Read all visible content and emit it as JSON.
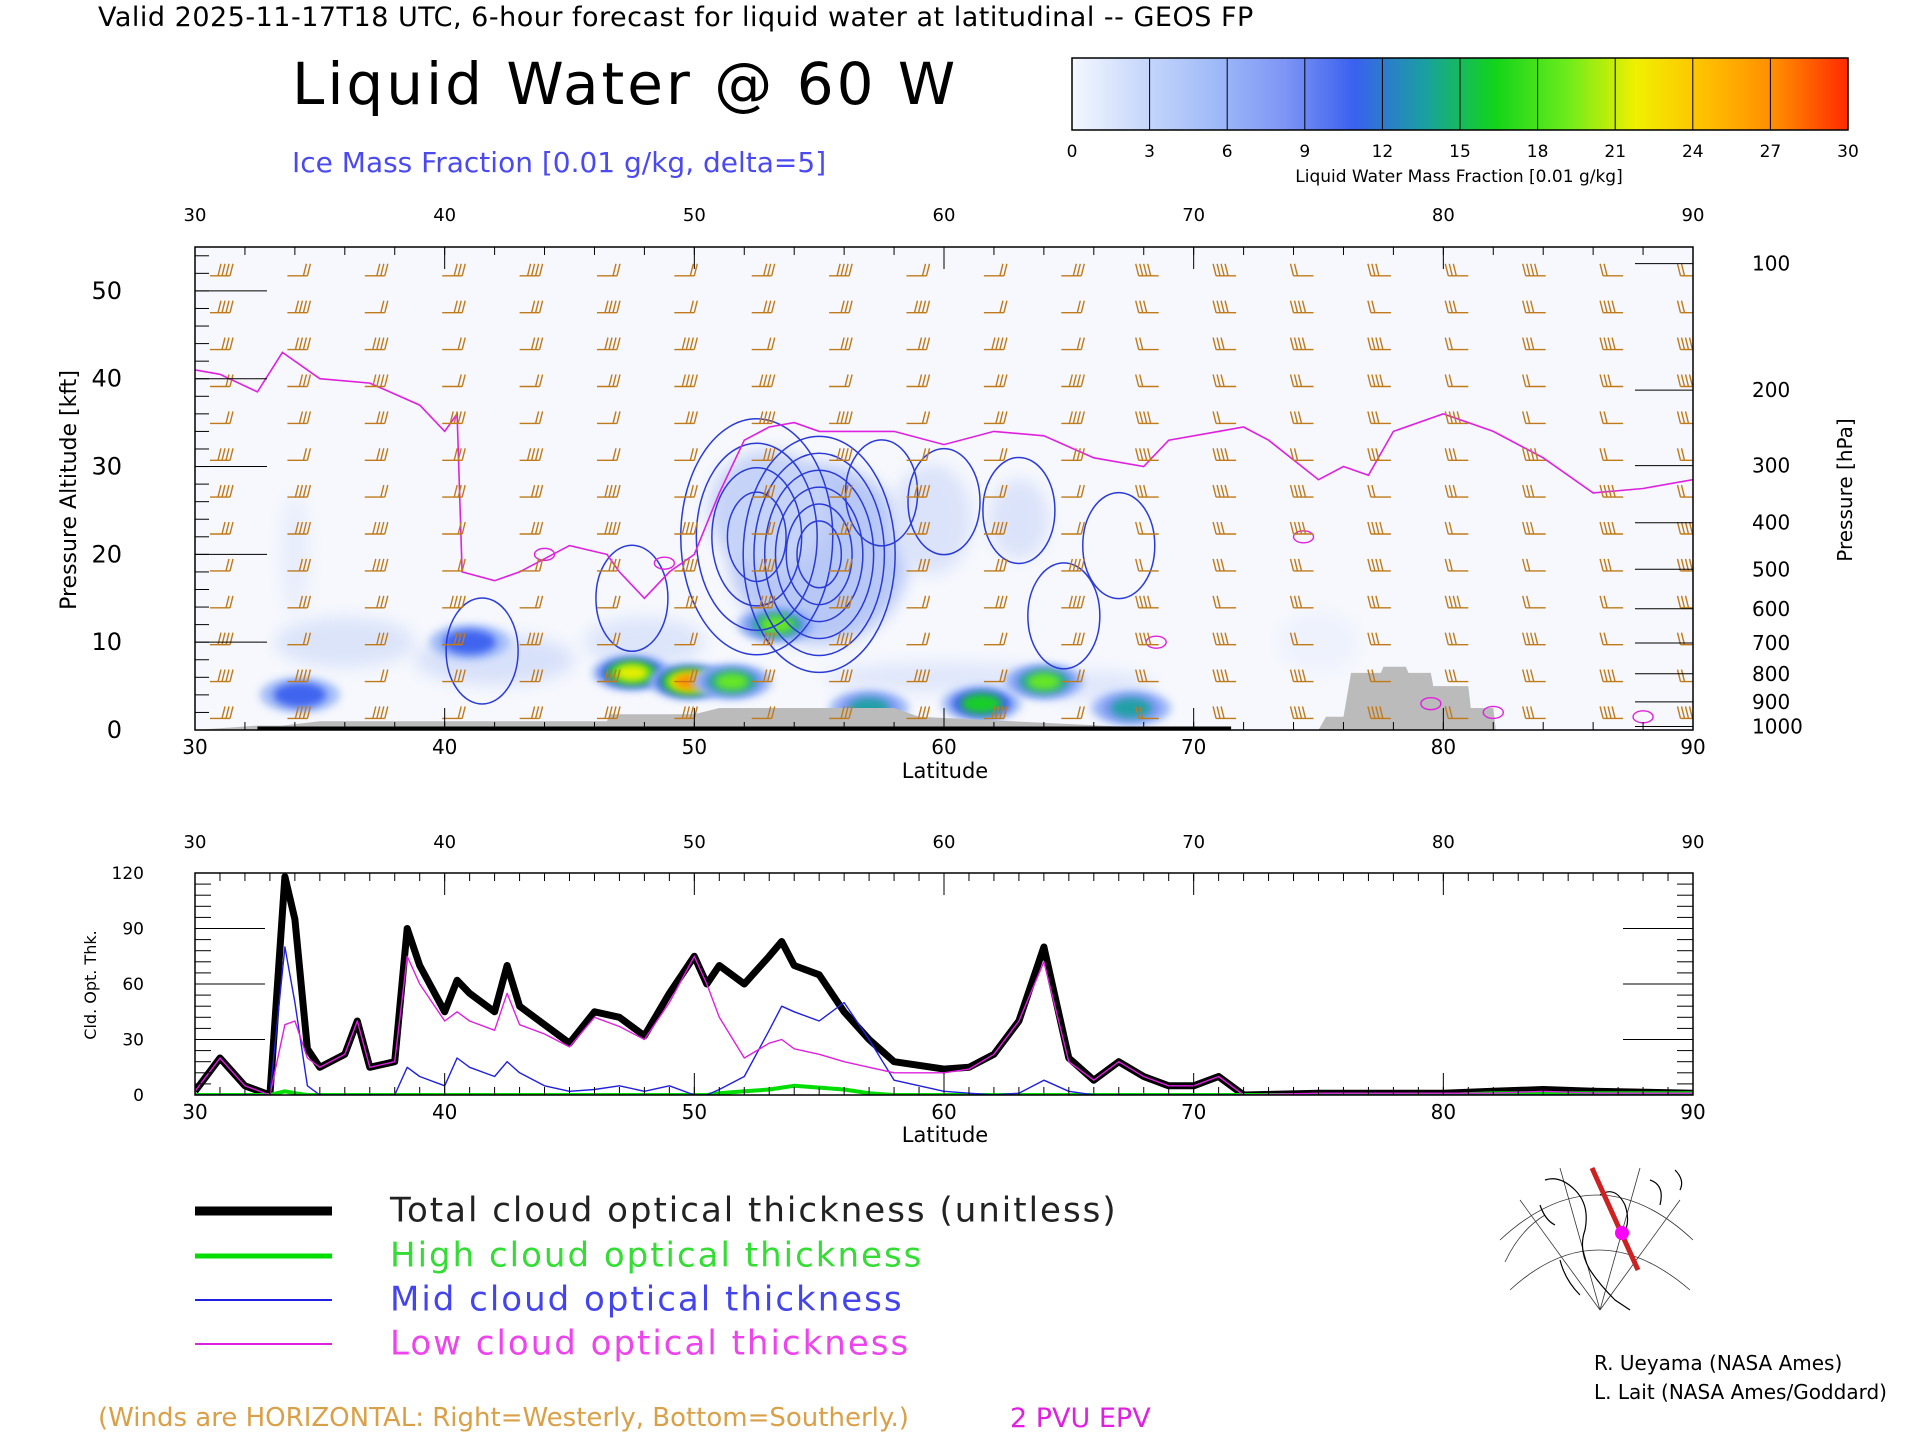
{
  "header": {
    "valid_line": "Valid 2025-11-17T18 UTC, 6-hour forecast for liquid water at latitudinal -- GEOS FP",
    "title": "Liquid Water @ 60 W",
    "subtitle": "Ice Mass Fraction [0.01 g/kg, delta=5]"
  },
  "colorbar": {
    "label": "Liquid Water Mass Fraction [0.01 g/kg]",
    "ticks": [
      "0",
      "3",
      "6",
      "9",
      "12",
      "15",
      "18",
      "21",
      "24",
      "27",
      "30"
    ],
    "colors": [
      "#f4f7fe",
      "#c8d8fb",
      "#a0bbf8",
      "#7f96f5",
      "#3a60ef",
      "#1aa0a0",
      "#12d41a",
      "#6aeb1c",
      "#f0f000",
      "#ffbe00",
      "#ff8a00",
      "#ff2a00"
    ]
  },
  "colors": {
    "wind_barbs": "#c07a1a",
    "ice_contours": "#2a3ad8",
    "epv_line": "#e020e0",
    "terrain": "#bbbbbb",
    "total_line": "#000000",
    "high_line": "#00dd00",
    "mid_line": "#2020e0",
    "low_line": "#e020e0"
  },
  "chart_data": [
    {
      "type": "heatmap",
      "name_shown": "Liquid Water @ 60 W",
      "xlabel": "Latitude",
      "ylabel": "Pressure Altitude [kft]",
      "ylabel_right": "Pressure [hPa]",
      "xlim": [
        30,
        90
      ],
      "ylim": [
        0,
        55
      ],
      "x_ticks": [
        "30",
        "40",
        "50",
        "60",
        "70",
        "80",
        "90"
      ],
      "y_ticks": [
        "0",
        "10",
        "20",
        "30",
        "40",
        "50"
      ],
      "pressure_ticks": [
        "100",
        "200",
        "300",
        "400",
        "500",
        "600",
        "700",
        "800",
        "900",
        "1000"
      ],
      "pressure_tick_kft": [
        53.1,
        38.7,
        30.1,
        23.6,
        18.3,
        13.8,
        9.9,
        6.4,
        3.2,
        0.4
      ],
      "liquid_water_blobs": [
        {
          "lat": 34.2,
          "kft": 4,
          "value": 12
        },
        {
          "lat": 41.0,
          "kft": 10,
          "value": 11
        },
        {
          "lat": 47.5,
          "kft": 6.5,
          "value": 22
        },
        {
          "lat": 49.8,
          "kft": 5.5,
          "value": 26
        },
        {
          "lat": 51.5,
          "kft": 5.5,
          "value": 19
        },
        {
          "lat": 53.3,
          "kft": 12,
          "value": 19
        },
        {
          "lat": 57.0,
          "kft": 2.5,
          "value": 14
        },
        {
          "lat": 61.5,
          "kft": 3.0,
          "value": 15
        },
        {
          "lat": 64.0,
          "kft": 5.5,
          "value": 18
        },
        {
          "lat": 67.5,
          "kft": 2.5,
          "value": 13
        }
      ],
      "ice_mass_fraction_contours": [
        {
          "lat": 55.0,
          "kft": 20,
          "levels": 6
        },
        {
          "lat": 52.5,
          "kft": 22,
          "levels": 4
        },
        {
          "lat": 57.5,
          "kft": 27,
          "levels": 1
        },
        {
          "lat": 60.0,
          "kft": 26,
          "levels": 1
        },
        {
          "lat": 63.0,
          "kft": 25,
          "levels": 1
        },
        {
          "lat": 67.0,
          "kft": 21,
          "levels": 1
        },
        {
          "lat": 41.5,
          "kft": 9,
          "levels": 1
        },
        {
          "lat": 47.5,
          "kft": 15,
          "levels": 1
        },
        {
          "lat": 64.8,
          "kft": 13,
          "levels": 1
        }
      ],
      "epv_2pvu_kft": [
        [
          30,
          41
        ],
        [
          31,
          40.5
        ],
        [
          32.5,
          38.5
        ],
        [
          33.5,
          43
        ],
        [
          35,
          40
        ],
        [
          37,
          39.5
        ],
        [
          39,
          37
        ],
        [
          40,
          34
        ],
        [
          40.5,
          36
        ],
        [
          40.7,
          18
        ],
        [
          42,
          17
        ],
        [
          43,
          18
        ],
        [
          45,
          21
        ],
        [
          46.5,
          20
        ],
        [
          47,
          18
        ],
        [
          48,
          15
        ],
        [
          49,
          18
        ],
        [
          50,
          20
        ],
        [
          51,
          27
        ],
        [
          52,
          33
        ],
        [
          53,
          34.5
        ],
        [
          54,
          35
        ],
        [
          55,
          34
        ],
        [
          56,
          34
        ],
        [
          58,
          34
        ],
        [
          60,
          32.5
        ],
        [
          62,
          34
        ],
        [
          64,
          33.5
        ],
        [
          66,
          31
        ],
        [
          68,
          30
        ],
        [
          69,
          33
        ],
        [
          71,
          34
        ],
        [
          72,
          34.5
        ],
        [
          73,
          33
        ],
        [
          75,
          28.5
        ],
        [
          76,
          30
        ],
        [
          77,
          29
        ],
        [
          78,
          34
        ],
        [
          80,
          36
        ],
        [
          82,
          34
        ],
        [
          84,
          31
        ],
        [
          86,
          27
        ],
        [
          88,
          27.5
        ],
        [
          90,
          28.5
        ]
      ],
      "terrain_kft": [
        [
          30,
          0
        ],
        [
          32.5,
          0.5
        ],
        [
          33.5,
          0.5
        ],
        [
          35,
          1
        ],
        [
          46.5,
          1
        ],
        [
          46.6,
          1.8
        ],
        [
          50,
          1.8
        ],
        [
          51,
          2.5
        ],
        [
          53,
          2.5
        ],
        [
          58,
          2.5
        ],
        [
          59,
          1.5
        ],
        [
          70,
          0
        ],
        [
          72,
          0
        ],
        [
          75,
          0
        ],
        [
          75.3,
          1.5
        ],
        [
          76,
          1.5
        ],
        [
          76.3,
          6.5
        ],
        [
          77.5,
          6.5
        ],
        [
          77.6,
          7.2
        ],
        [
          78.5,
          7.2
        ],
        [
          78.6,
          6.5
        ],
        [
          79.5,
          6.5
        ],
        [
          79.6,
          5
        ],
        [
          81,
          5
        ],
        [
          81.1,
          2.5
        ],
        [
          82,
          2.5
        ],
        [
          82.1,
          0
        ],
        [
          90,
          0
        ]
      ]
    },
    {
      "type": "line",
      "xlabel": "Latitude",
      "ylabel": "Cld. Opt. Thk.",
      "xlim": [
        30,
        90
      ],
      "ylim": [
        0,
        120
      ],
      "x_ticks": [
        "30",
        "40",
        "50",
        "60",
        "70",
        "80",
        "90"
      ],
      "y_ticks": [
        "0",
        "30",
        "60",
        "90",
        "120"
      ],
      "x": [
        30,
        31,
        32,
        33,
        33.6,
        34,
        34.5,
        35,
        36,
        36.5,
        37,
        38,
        38.5,
        39,
        40,
        40.5,
        41,
        42,
        42.5,
        43,
        44,
        45,
        46,
        47,
        48,
        49,
        50,
        50.5,
        51,
        52,
        53,
        53.5,
        54,
        55,
        56,
        57,
        58,
        60,
        61,
        62,
        63,
        64,
        65,
        66,
        67,
        68,
        69,
        70,
        71,
        72,
        75,
        78,
        80,
        82,
        84,
        86,
        90
      ],
      "series": [
        {
          "name": "Total cloud optical thickness (unitless)",
          "values": [
            2,
            20,
            5,
            0,
            118,
            95,
            25,
            15,
            22,
            40,
            15,
            18,
            90,
            70,
            45,
            62,
            55,
            45,
            70,
            48,
            38,
            28,
            45,
            42,
            32,
            55,
            75,
            60,
            70,
            60,
            75,
            83,
            70,
            65,
            45,
            30,
            18,
            14,
            15,
            22,
            40,
            80,
            20,
            8,
            18,
            10,
            5,
            5,
            10,
            0,
            1,
            1,
            1,
            2,
            3,
            2,
            1
          ]
        },
        {
          "name": "High cloud optical thickness",
          "values": [
            0,
            0,
            0,
            0,
            2,
            1,
            0,
            0,
            0,
            0,
            0,
            0,
            0,
            0,
            0,
            0,
            0,
            0,
            0,
            0,
            0,
            0,
            0,
            0,
            0,
            0,
            0,
            0,
            1,
            2,
            3,
            4,
            5,
            4,
            3,
            1,
            0,
            0,
            0,
            0,
            0,
            0,
            0,
            0,
            0,
            0,
            0,
            0,
            0,
            0,
            0,
            0,
            0,
            1,
            1,
            1,
            1
          ]
        },
        {
          "name": "Mid cloud optical thickness",
          "values": [
            0,
            0,
            0,
            0,
            80,
            50,
            5,
            0,
            0,
            0,
            0,
            0,
            15,
            10,
            5,
            20,
            15,
            10,
            18,
            12,
            5,
            2,
            3,
            5,
            2,
            5,
            0,
            0,
            3,
            10,
            35,
            48,
            45,
            40,
            50,
            30,
            8,
            2,
            1,
            0,
            1,
            8,
            2,
            0,
            0,
            0,
            0,
            0,
            0,
            0,
            0,
            0,
            0,
            0,
            0,
            0,
            0
          ]
        },
        {
          "name": "Low cloud optical thickness",
          "values": [
            2,
            20,
            5,
            0,
            38,
            40,
            20,
            15,
            22,
            40,
            15,
            18,
            75,
            60,
            40,
            45,
            40,
            35,
            55,
            38,
            33,
            26,
            42,
            37,
            30,
            50,
            75,
            60,
            42,
            20,
            28,
            30,
            25,
            22,
            18,
            15,
            12,
            12,
            14,
            22,
            40,
            72,
            18,
            8,
            18,
            10,
            5,
            5,
            10,
            0,
            1,
            1,
            1,
            1,
            2,
            1,
            1
          ]
        }
      ]
    }
  ],
  "legend": {
    "total": "Total cloud optical thickness (unitless)",
    "high": "High cloud optical thickness",
    "mid": "Mid cloud optical thickness",
    "low": "Low cloud optical thickness"
  },
  "credits": {
    "line1": "R. Ueyama (NASA Ames)",
    "line2": "L. Lait (NASA Ames/Goddard)"
  },
  "notes": {
    "winds": "(Winds are HORIZONTAL: Right=Westerly, Bottom=Southerly.)",
    "epv": "2 PVU EPV"
  }
}
